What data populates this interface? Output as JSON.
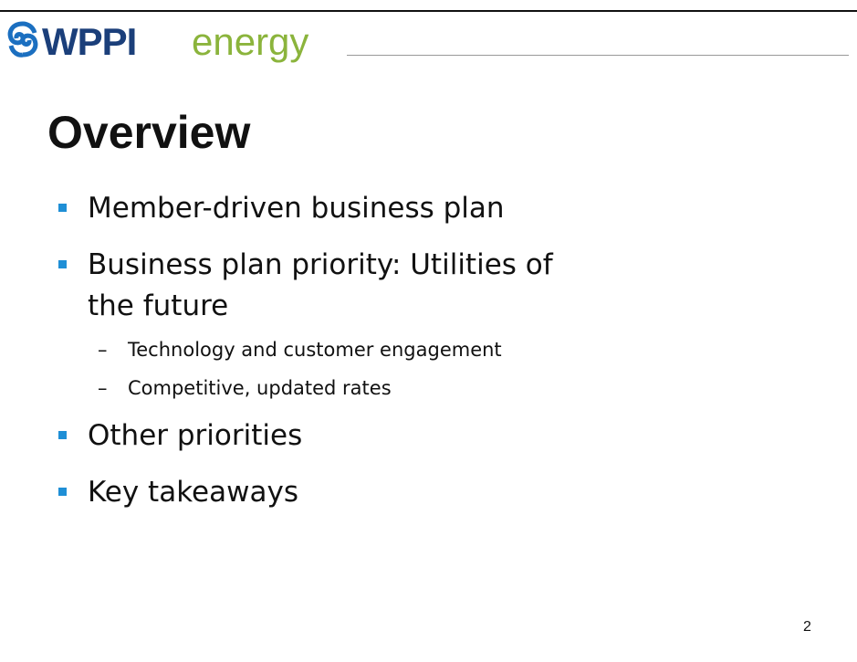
{
  "header": {
    "logo": {
      "brand": "WPPI",
      "word": "energy"
    }
  },
  "title": "Overview",
  "bullets": [
    {
      "text": "Member-driven business plan"
    },
    {
      "text": "Business plan priority: Utilities of the future",
      "subitems": [
        "Technology and customer engagement",
        "Competitive, updated rates"
      ]
    },
    {
      "text": "Other priorities"
    },
    {
      "text": "Key takeaways"
    }
  ],
  "page_number": "2"
}
